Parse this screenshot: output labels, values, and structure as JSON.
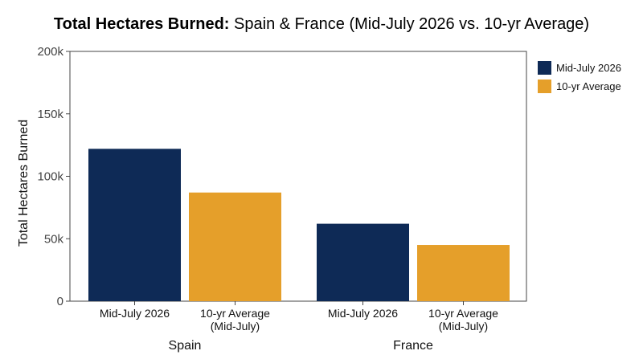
{
  "chart_data": {
    "type": "bar",
    "title_bold": "Total Hectares Burned:",
    "title_rest": " Spain & France (Mid-July 2026 vs. 10-yr Average)",
    "ylabel": "Total Hectares Burned",
    "ylim": [
      0,
      200000
    ],
    "yticks": [
      {
        "value": 0,
        "label": "0"
      },
      {
        "value": 50000,
        "label": "50k"
      },
      {
        "value": 100000,
        "label": "100k"
      },
      {
        "value": 150000,
        "label": "150k"
      },
      {
        "value": 200000,
        "label": "200k"
      }
    ],
    "groups": [
      "Spain",
      "France"
    ],
    "categories": [
      {
        "lines": [
          "Mid-July 2026"
        ]
      },
      {
        "lines": [
          "10-yr Average",
          "(Mid-July)"
        ]
      }
    ],
    "series": [
      {
        "name": "Mid-July 2026",
        "color": "#0e2a56",
        "values": [
          122000,
          62000
        ]
      },
      {
        "name": "10-yr Average",
        "color": "#e59f2a",
        "values": [
          87000,
          45000
        ]
      }
    ],
    "legend_position": "right",
    "grid": false
  }
}
